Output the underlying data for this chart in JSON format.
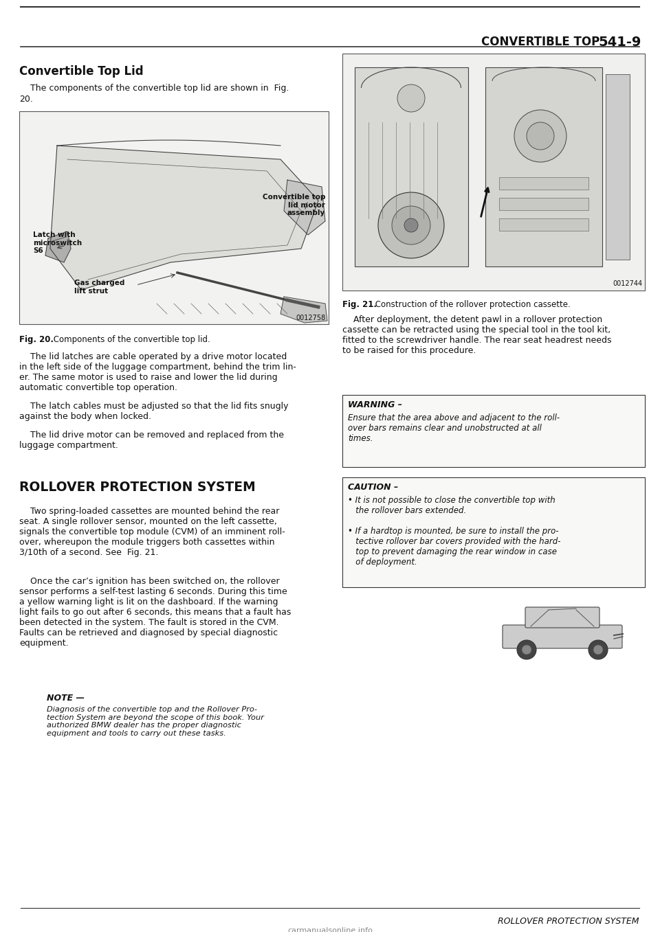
{
  "page_bg": "#ffffff",
  "text_color": "#111111",
  "font_family": "DejaVu Sans",
  "header_title": "CONVERTIBLE TOP   541-9",
  "section1_title": "Convertible Top Lid",
  "para1_line1": "    The components of the convertible top lid are shown in  Fig.",
  "para1_line2": "20.",
  "fig20_caption_bold": "Fig. 20.",
  "fig20_caption_rest": " Components of the convertible top lid.",
  "fig20_code": "0012758",
  "fig21_caption_bold": "Fig. 21.",
  "fig21_caption_rest": " Construction of the rollover protection cassette.",
  "fig21_code": "0012744",
  "para_after_fig21": "    After deployment, the detent pawl in a rollover protection\ncassette can be retracted using the special tool in the tool kit,\nfitted to the screwdriver handle. The rear seat headrest needs\nto be raised for this procedure.",
  "warning_title": "WARNING –",
  "warning_body": "Ensure that the area above and adjacent to the roll-\nover bars remains clear and unobstructed at all\ntimes.",
  "caution_title": "CAUTION –",
  "caution_body1": "• It is not possible to close the convertible top with\n   the rollover bars extended.",
  "caution_body2": "• If a hardtop is mounted, be sure to install the pro-\n   tective rollover bar covers provided with the hard-\n   top to prevent damaging the rear window in case\n   of deployment.",
  "para_lid1": "    The lid latches are cable operated by a drive motor located\nin the left side of the luggage compartment, behind the trim lin-\ner. The same motor is used to raise and lower the lid during\nautomatic convertible top operation.",
  "para_lid2": "    The latch cables must be adjusted so that the lid fits snugly\nagainst the body when locked.",
  "para_lid3": "    The lid drive motor can be removed and replaced from the\nluggage compartment.",
  "section2_title_r": "ROLLOVER ",
  "section2_title_sc": "PROTECTION SYSTEM",
  "para2": "    Two spring-loaded cassettes are mounted behind the rear\nseat. A single rollover sensor, mounted on the left cassette,\nsignals the convertible top module (CVM) of an imminent roll-\nover, whereupon the module triggers both cassettes within\n3/10th of a second. See  Fig. 21.",
  "para3": "    Once the car’s ignition has been switched on, the rollover\nsensor performs a self-test lasting 6 seconds. During this time\na yellow warning light is lit on the dashboard. If the warning\nlight fails to go out after 6 seconds, this means that a fault has\nbeen detected in the system. The fault is stored in the CVM.\nFaults can be retrieved and diagnosed by special diagnostic\nequipment.",
  "note_title": "NOTE —",
  "note_body": "Diagnosis of the convertible top and the Rollover Pro-\ntection System are beyond the scope of this book. Your\nauthorized BMW dealer has the proper diagnostic\nequipment and tools to carry out these tasks.",
  "footer_text": "ROLLOVER PROTECTION SYSTEM",
  "watermark": "carmanualsonline.info",
  "latch_label": "Latch with\nmicroswitch\nS6",
  "motor_label": "Convertible top\nlid motor\nassembly",
  "gas_label": "Gas charged\nlift strut"
}
